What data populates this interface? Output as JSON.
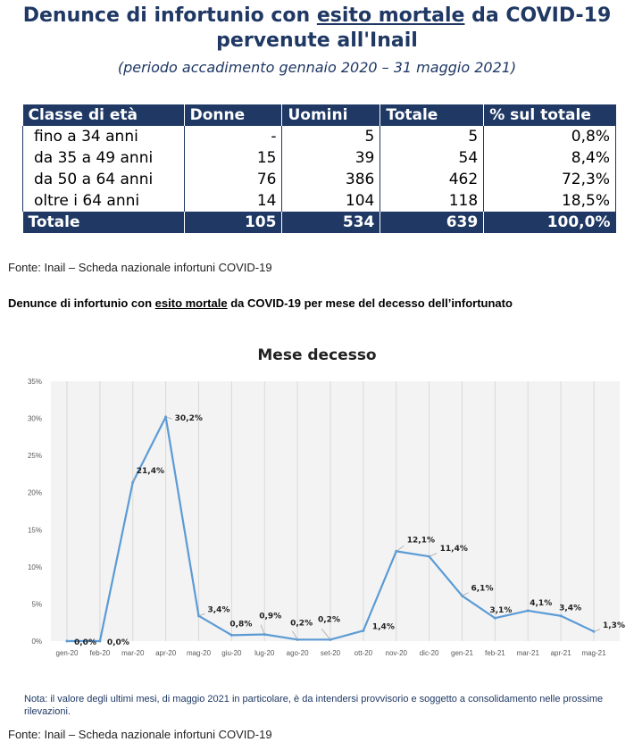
{
  "header": {
    "title_part1": "Denunce di infortunio con",
    "title_emph": "esito mortale",
    "title_part2": "da COVID-19",
    "title_line2": "pervenute all'Inail",
    "subtitle": "(periodo accadimento gennaio 2020 – 31 maggio 2021)"
  },
  "table": {
    "headers": [
      "Classe di età",
      "Donne",
      "Uomini",
      "Totale",
      "% sul totale"
    ],
    "rows": [
      [
        "fino a 34 anni",
        "-",
        "5",
        "5",
        "0,8%"
      ],
      [
        "da 35 a 49 anni",
        "15",
        "39",
        "54",
        "8,4%"
      ],
      [
        "da 50 a 64 anni",
        "76",
        "386",
        "462",
        "72,3%"
      ],
      [
        "oltre i 64 anni",
        "14",
        "104",
        "118",
        "18,5%"
      ]
    ],
    "total": [
      "Totale",
      "105",
      "534",
      "639",
      "100,0%"
    ]
  },
  "source1": "Fonte: Inail – Scheda nazionale infortuni COVID-19",
  "section2": {
    "part1": "Denunce di infortunio con",
    "emph": "esito mortale",
    "part2": "da COVID-19 per mese del decesso dell’infortunato"
  },
  "chart_data": {
    "type": "line",
    "title": "Mese decesso",
    "categories": [
      "gen-20",
      "feb-20",
      "mar-20",
      "apr-20",
      "mag-20",
      "giu-20",
      "lug-20",
      "ago-20",
      "set-20",
      "ott-20",
      "nov-20",
      "dic-20",
      "gen-21",
      "feb-21",
      "mar-21",
      "apr-21",
      "mag-21"
    ],
    "values": [
      0.0,
      0.0,
      21.4,
      30.2,
      3.4,
      0.8,
      0.9,
      0.2,
      0.2,
      1.4,
      12.1,
      11.4,
      6.1,
      3.1,
      4.1,
      3.4,
      1.3
    ],
    "labels": [
      "0,0%",
      "0,0%",
      "21,4%",
      "30,2%",
      "3,4%",
      "0,8%",
      "0,9%",
      "0,2%",
      "0,2%",
      "1,4%",
      "12,1%",
      "11,4%",
      "6,1%",
      "3,1%",
      "4,1%",
      "3,4%",
      "1,3%"
    ],
    "yticks": [
      "0%",
      "5%",
      "10%",
      "15%",
      "20%",
      "25%",
      "30%",
      "35%"
    ],
    "ylim": [
      0,
      35
    ],
    "grid": "vertical",
    "line_color": "#5b9bd5"
  },
  "note": "Nota: il valore degli ultimi mesi, di maggio 2021 in particolare, è da intendersi provvisorio e soggetto a consolidamento nelle prossime rilevazioni.",
  "source2": "Fonte: Inail – Scheda nazionale infortuni COVID-19"
}
